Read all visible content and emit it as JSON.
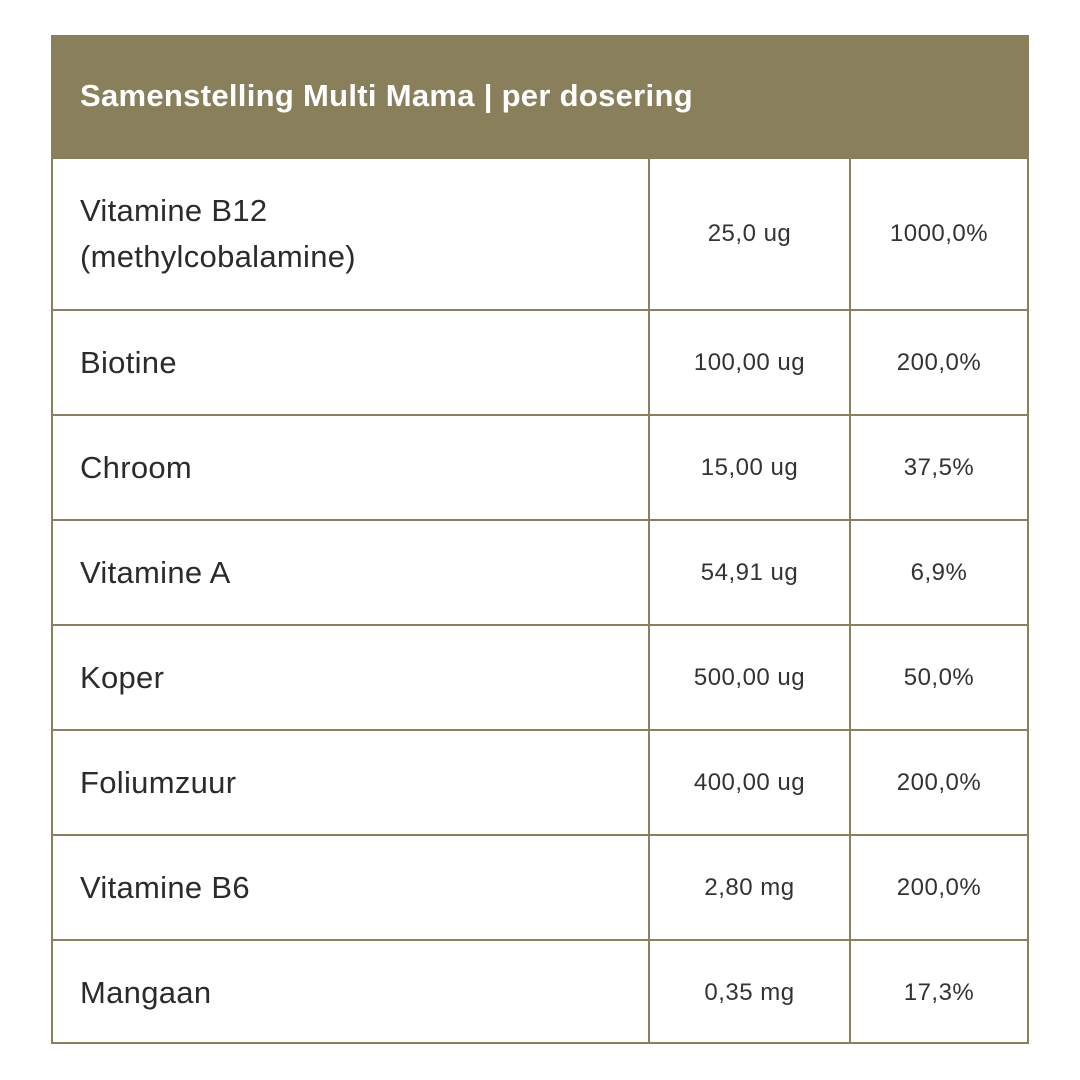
{
  "table": {
    "title": "Samenstelling Multi Mama | per dosering",
    "rows": [
      {
        "name": "Vitamine B12\n(methylcobalamine)",
        "amount": "25,0 ug",
        "percent": "1000,0%"
      },
      {
        "name": "Biotine",
        "amount": "100,00 ug",
        "percent": "200,0%"
      },
      {
        "name": "Chroom",
        "amount": "15,00 ug",
        "percent": "37,5%"
      },
      {
        "name": "Vitamine A",
        "amount": "54,91 ug",
        "percent": "6,9%"
      },
      {
        "name": "Koper",
        "amount": "500,00 ug",
        "percent": "50,0%"
      },
      {
        "name": "Foliumzuur",
        "amount": "400,00 ug",
        "percent": "200,0%"
      },
      {
        "name": "Vitamine B6",
        "amount": "2,80 mg",
        "percent": "200,0%"
      },
      {
        "name": "Mangaan",
        "amount": "0,35 mg",
        "percent": "17,3%"
      }
    ]
  },
  "colors": {
    "header_background": "#897f5b",
    "border": "#8a805f",
    "header_text": "#ffffff"
  }
}
